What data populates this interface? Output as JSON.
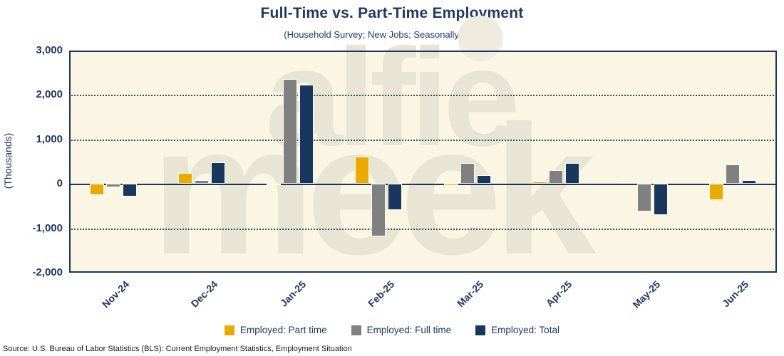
{
  "header": {
    "title": "Full-Time vs. Part-Time Employment",
    "subtitle": "(Household Survey; New Jobs; Seasonally Adjusted)"
  },
  "y_axis": {
    "label": "(Thousands)",
    "ticks": [
      {
        "label": "3,000",
        "value": 3000
      },
      {
        "label": "2,000",
        "value": 2000
      },
      {
        "label": "1,000",
        "value": 1000
      },
      {
        "label": "0",
        "value": 0
      },
      {
        "label": "-1,000",
        "value": -1000
      },
      {
        "label": "-2,000",
        "value": -2000
      }
    ]
  },
  "watermark": {
    "line1": "alfie",
    "line2": "meek"
  },
  "legend": {
    "items": [
      {
        "label": "Employed: Part time",
        "color": "#EAAA00"
      },
      {
        "label": "Employed: Full time",
        "color": "#808080"
      },
      {
        "label": "Employed: Total",
        "color": "#17375E"
      }
    ]
  },
  "footer": {
    "source": "Source: U.S. Bureau of Labor Statistics (BLS): Current Employment Statistics, Employment Situation"
  },
  "colors": {
    "accent_text": "#1F3864",
    "part_time": "#EAAA00",
    "full_time": "#808080",
    "total": "#17375E",
    "plot_background": "#FAF6E3",
    "watermark": "#E9E5D4"
  },
  "chart_data": {
    "type": "bar",
    "title": "Full-Time vs. Part-Time Employment",
    "subtitle": "(Household Survey; New Jobs; Seasonally Adjusted)",
    "ylabel": "(Thousands)",
    "xlabel": "",
    "ylim": [
      -2000,
      3000
    ],
    "grid": "horizontal-dotted",
    "legend_position": "bottom",
    "categories": [
      "Nov-24",
      "Dec-24",
      "Jan-25",
      "Feb-25",
      "Mar-25",
      "Apr-25",
      "May-25",
      "Jun-25"
    ],
    "series": [
      {
        "name": "Employed: Part time",
        "color": "#EAAA00",
        "values": [
          -260,
          250,
          -20,
          610,
          -40,
          50,
          30,
          -360
        ]
      },
      {
        "name": "Employed: Full time",
        "color": "#808080",
        "values": [
          -70,
          80,
          2360,
          -1190,
          460,
          310,
          -620,
          440
        ]
      },
      {
        "name": "Employed: Total",
        "color": "#17375E",
        "values": [
          -280,
          480,
          2230,
          -590,
          200,
          460,
          -700,
          90
        ]
      }
    ]
  }
}
